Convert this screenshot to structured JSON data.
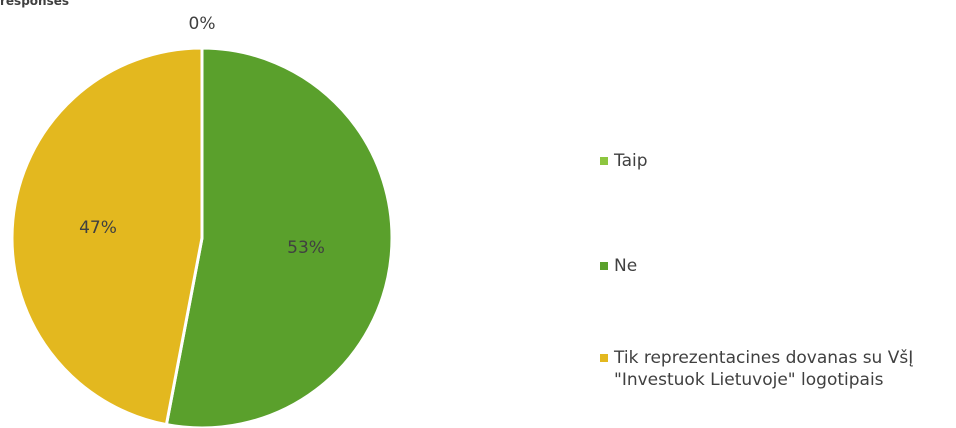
{
  "chart_data": {
    "type": "pie",
    "title": "responses",
    "categories": [
      "Taip",
      "Ne",
      "Tik reprezentacines dovanas su VšĮ \"Investuok Lietuvoje\" logotipais"
    ],
    "values": [
      0,
      53,
      47
    ],
    "value_labels": [
      "0%",
      "53%",
      "47%"
    ],
    "colors": [
      "#8dc63f",
      "#5aa02c",
      "#e3b81f"
    ],
    "legend": "right"
  }
}
